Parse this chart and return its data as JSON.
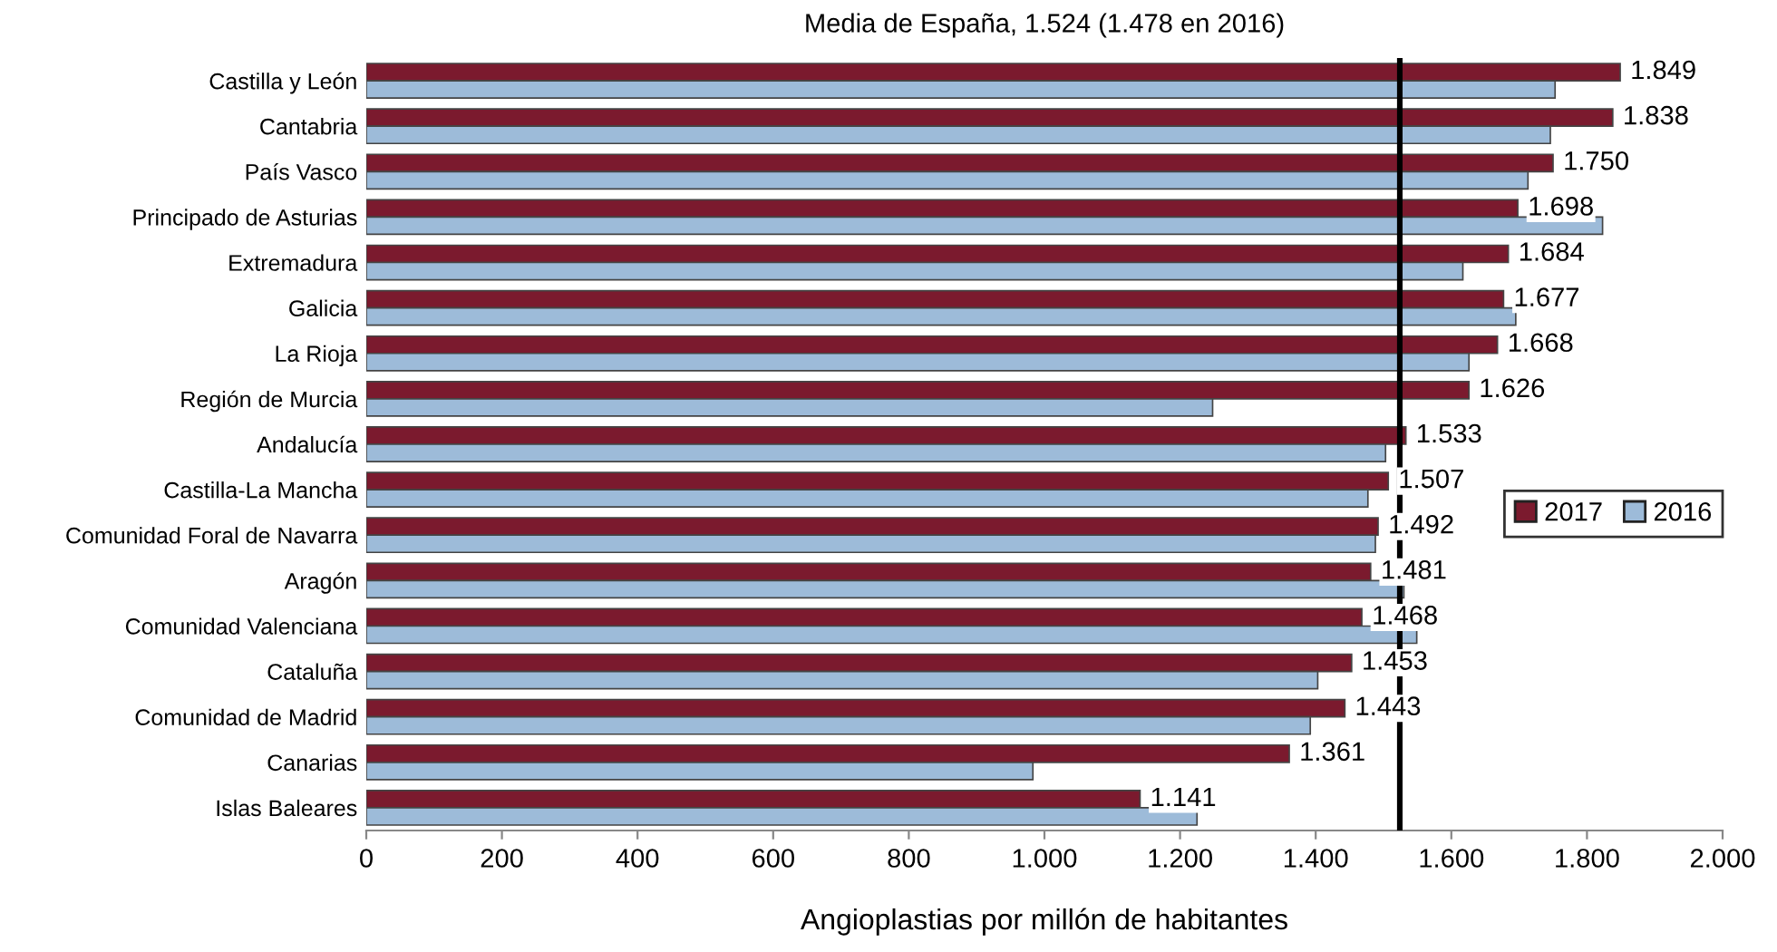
{
  "chart_data": {
    "type": "bar",
    "orientation": "horizontal",
    "title": "Media de España, 1.524 (1.478 en 2016)",
    "xlabel": "Angioplastias por millón de habitantes",
    "categories": [
      "Castilla y León",
      "Cantabria",
      "País Vasco",
      "Principado de Asturias",
      "Extremadura",
      "Galicia",
      "La Rioja",
      "Región de Murcia",
      "Andalucía",
      "Castilla-La Mancha",
      "Comunidad Foral de Navarra",
      "Aragón",
      "Comunidad Valenciana",
      "Cataluña",
      "Comunidad de Madrid",
      "Canarias",
      "Islas Baleares"
    ],
    "series": [
      {
        "name": "2017",
        "color": "#7b1a2e",
        "values": [
          1849,
          1838,
          1750,
          1698,
          1684,
          1677,
          1668,
          1626,
          1533,
          1507,
          1492,
          1481,
          1468,
          1453,
          1443,
          1361,
          1141
        ],
        "value_labels": [
          "1.849",
          "1.838",
          "1.750",
          "1.698",
          "1.684",
          "1.677",
          "1.668",
          "1.626",
          "1.533",
          "1.507",
          "1.492",
          "1.481",
          "1.468",
          "1.453",
          "1.443",
          "1.361",
          "1.141"
        ]
      },
      {
        "name": "2016",
        "color": "#9dbbd9",
        "values": [
          1753,
          1746,
          1713,
          1823,
          1617,
          1695,
          1626,
          1248,
          1503,
          1477,
          1488,
          1530,
          1549,
          1403,
          1392,
          983,
          1225
        ]
      }
    ],
    "xlim": [
      0,
      2000
    ],
    "xticks": [
      0,
      200,
      400,
      600,
      800,
      {
        "value": 1000,
        "label": "1.000"
      },
      {
        "value": 1200,
        "label": "1.200"
      },
      {
        "value": 1400,
        "label": "1.400"
      },
      {
        "value": 1600,
        "label": "1.600"
      },
      {
        "value": 1800,
        "label": "1.800"
      },
      {
        "value": 2000,
        "label": "2.000"
      }
    ],
    "ref_lines": [
      {
        "axis": "x",
        "value": 1524,
        "color": "#000000"
      }
    ],
    "grid": false,
    "legend": "right"
  }
}
